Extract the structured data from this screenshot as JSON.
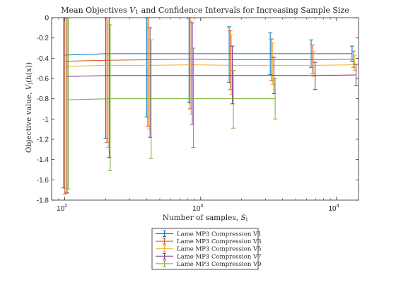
{
  "chart_data": {
    "type": "line",
    "title": "Mean Objectives V_1 and Confidence Intervals for Increasing Sample Size",
    "title_parts": {
      "prefix": "Mean Objectives ",
      "var": "V",
      "sub": "1",
      "suffix": " and Confidence Intervals for Increasing Sample Size"
    },
    "xlabel": "Number of samples, S_i",
    "xlabel_parts": {
      "prefix": "Number of samples, ",
      "var": "S",
      "sub": "i"
    },
    "ylabel": "Objective value, V_i(h(x))",
    "ylabel_parts": {
      "prefix": "Objective value, ",
      "var": "V",
      "sub": "i",
      "suffix": "(h(x))"
    },
    "x_scale": "log",
    "xlim": [
      80,
      14500
    ],
    "ylim": [
      -1.8,
      0
    ],
    "x_ticks": [
      100,
      1000,
      10000
    ],
    "x_tick_labels": [
      {
        "base": "10",
        "exp": "2"
      },
      {
        "base": "10",
        "exp": "3"
      },
      {
        "base": "10",
        "exp": "4"
      }
    ],
    "y_ticks": [
      0,
      -0.2,
      -0.4,
      -0.6,
      -0.8,
      -1,
      -1.2,
      -1.4,
      -1.6,
      -1.8
    ],
    "y_tick_labels": [
      "0",
      "-0.2",
      "-0.4",
      "-0.6",
      "-0.8",
      "-1",
      "-1.2",
      "-1.4",
      "-1.6",
      "-1.8"
    ],
    "grid": false,
    "legend_position": "bottom-outside",
    "series": [
      {
        "name": "Lame MP3 Compression V1",
        "color": "#0072BD",
        "x": [
          98,
          200,
          400,
          820,
          1620,
          3250,
          6500,
          13000
        ],
        "y": [
          -0.37,
          -0.355,
          -0.355,
          -0.355,
          -0.355,
          -0.355,
          -0.355,
          -0.355
        ],
        "lower": [
          -1.68,
          -1.19,
          -0.98,
          -0.84,
          -0.64,
          -0.56,
          -0.49,
          -0.43
        ],
        "upper": [
          0,
          0,
          0,
          0,
          -0.09,
          -0.15,
          -0.22,
          -0.28
        ]
      },
      {
        "name": "Lame MP3 Compression V3",
        "color": "#D95319",
        "x": [
          100,
          204,
          408,
          836,
          1650,
          3320,
          6650,
          13300
        ],
        "y": [
          -0.43,
          -0.42,
          -0.415,
          -0.41,
          -0.415,
          -0.415,
          -0.415,
          -0.41
        ],
        "lower": [
          -1.74,
          -1.23,
          -1.07,
          -0.9,
          -0.71,
          -0.62,
          -0.55,
          -0.49
        ],
        "upper": [
          0,
          0,
          0,
          0,
          -0.13,
          -0.21,
          -0.27,
          -0.33
        ]
      },
      {
        "name": "Lame MP3 Compression V5",
        "color": "#EDB120",
        "x": [
          102,
          208,
          416,
          852,
          1680,
          3390,
          6800,
          13600
        ],
        "y": [
          -0.48,
          -0.47,
          -0.47,
          -0.465,
          -0.47,
          -0.47,
          -0.47,
          -0.465
        ],
        "lower": [
          -1.72,
          -1.28,
          -1.1,
          -0.95,
          -0.76,
          -0.66,
          -0.58,
          -0.52
        ],
        "upper": [
          0,
          -0.03,
          0,
          -0.03,
          -0.17,
          -0.25,
          -0.33,
          -0.37
        ]
      },
      {
        "name": "Lame MP3 Compression V7",
        "color": "#7E2F8E",
        "x": [
          104,
          212,
          424,
          868,
          1710,
          3460,
          6950,
          13900
        ],
        "y": [
          -0.58,
          -0.57,
          -0.57,
          -0.57,
          -0.57,
          -0.57,
          -0.57,
          -0.565
        ],
        "lower": [
          -1.73,
          -1.38,
          -1.18,
          -1.05,
          -0.85,
          -0.75,
          -0.71,
          -0.67
        ],
        "upper": [
          0,
          0,
          -0.1,
          -0.05,
          -0.28,
          -0.39,
          -0.44,
          -0.46
        ]
      },
      {
        "name": "Lame MP3 Compression V9",
        "color": "#77AC30",
        "x": [
          106,
          216,
          432,
          884,
          1740,
          3530
        ],
        "y": [
          -0.81,
          -0.8,
          -0.8,
          -0.8,
          -0.8,
          -0.8
        ],
        "lower": [
          -1.69,
          -1.51,
          -1.39,
          -1.28,
          -1.09,
          -1.0
        ],
        "upper": [
          0,
          -0.07,
          -0.22,
          -0.3,
          -0.52,
          -0.6
        ]
      }
    ]
  }
}
